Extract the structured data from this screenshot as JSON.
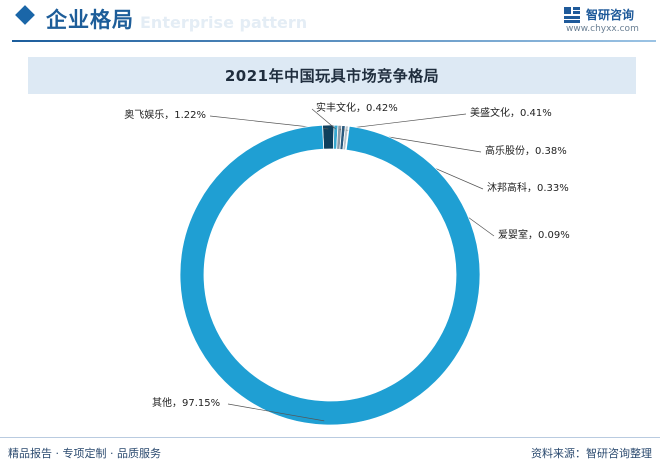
{
  "header": {
    "title": "企业格局",
    "watermark": "Enterprise pattern"
  },
  "brand": {
    "name": "智研咨询",
    "url": "www.chyxx.com"
  },
  "chart_data": {
    "type": "pie",
    "style": "donut",
    "title": "2021年中国玩具市场竞争格局",
    "slices": [
      {
        "label": "奥飞娱乐",
        "value": 1.22,
        "text": "1.22%",
        "color": "#0f3f5c"
      },
      {
        "label": "实丰文化",
        "value": 0.42,
        "text": "0.42%",
        "color": "#37a7cf"
      },
      {
        "label": "美盛文化",
        "value": 0.41,
        "text": "0.41%",
        "color": "#8a9aa7"
      },
      {
        "label": "高乐股份",
        "value": 0.38,
        "text": "0.38%",
        "color": "#2a5a7e"
      },
      {
        "label": "沐邦高科",
        "value": 0.33,
        "text": "0.33%",
        "color": "#b8c4cc"
      },
      {
        "label": "爱婴室",
        "value": 0.09,
        "text": "0.09%",
        "color": "#5e7c94"
      },
      {
        "label": "其他",
        "value": 97.15,
        "text": "97.15%",
        "color": "#1f9fd3"
      }
    ],
    "legend": "none"
  },
  "footer": {
    "left": "精品报告 · 专项定制 · 品质服务",
    "right": "资料来源：智研咨询整理"
  }
}
